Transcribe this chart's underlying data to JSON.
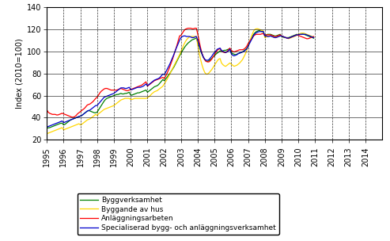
{
  "title": "",
  "ylabel": "Index (2010=100)",
  "xlim": [
    1995,
    2015
  ],
  "ylim": [
    20,
    140
  ],
  "yticks": [
    20,
    40,
    60,
    80,
    100,
    120,
    140
  ],
  "xticks": [
    1995,
    1996,
    1997,
    1998,
    1999,
    2000,
    2001,
    2002,
    2003,
    2004,
    2005,
    2006,
    2007,
    2008,
    2009,
    2010,
    2011,
    2012,
    2013,
    2014
  ],
  "legend_labels": [
    "Byggverksamhet",
    "Byggande av hus",
    "Anläggningsarbeten",
    "Specialiserad bygg- och anläggningsverksamhet"
  ],
  "colors": [
    "#008000",
    "#FFD700",
    "#FF0000",
    "#0000CC"
  ],
  "background_color": "#FFFFFF",
  "series": {
    "Byggverksamhet": [
      30.5,
      30.8,
      31.0,
      31.5,
      32.0,
      32.5,
      33.0,
      33.5,
      34.0,
      34.5,
      35.0,
      35.0,
      33.5,
      34.0,
      35.0,
      36.0,
      37.0,
      38.0,
      38.5,
      39.0,
      39.5,
      40.0,
      40.5,
      41.0,
      41.5,
      42.0,
      43.0,
      44.0,
      45.0,
      46.0,
      46.5,
      46.0,
      45.5,
      45.0,
      44.5,
      44.5,
      45.0,
      47.0,
      49.0,
      51.0,
      53.0,
      55.0,
      56.5,
      57.5,
      58.0,
      58.5,
      59.0,
      59.5,
      60.0,
      60.5,
      61.0,
      61.0,
      61.5,
      62.0,
      61.5,
      61.5,
      62.0,
      62.0,
      62.5,
      63.0,
      60.5,
      60.5,
      61.0,
      61.5,
      62.0,
      62.5,
      62.5,
      63.0,
      63.5,
      64.0,
      64.5,
      65.0,
      63.0,
      64.0,
      65.0,
      66.0,
      67.0,
      68.0,
      68.5,
      69.0,
      70.0,
      71.5,
      73.0,
      74.5,
      73.5,
      75.0,
      76.5,
      78.5,
      80.0,
      82.0,
      84.0,
      86.0,
      88.5,
      91.0,
      93.5,
      96.0,
      98.0,
      100.5,
      102.5,
      104.5,
      106.0,
      107.5,
      108.5,
      109.5,
      110.5,
      111.0,
      111.5,
      112.0,
      108.5,
      105.0,
      101.0,
      97.5,
      94.5,
      92.5,
      91.0,
      91.0,
      91.5,
      92.5,
      93.5,
      95.0,
      96.0,
      97.5,
      98.5,
      99.5,
      100.5,
      100.0,
      100.5,
      101.0,
      101.0,
      101.5,
      102.0,
      102.5,
      99.0,
      98.0,
      97.5,
      97.0,
      97.5,
      98.0,
      98.5,
      99.0,
      99.5,
      100.5,
      101.5,
      102.5,
      105.0,
      108.0,
      110.5,
      113.0,
      115.5,
      117.0,
      118.0,
      118.5,
      119.0,
      118.5,
      118.0,
      117.5,
      114.5,
      115.0,
      115.5,
      115.5,
      115.5,
      115.0,
      114.5,
      114.0,
      114.0,
      114.5,
      115.0,
      115.5,
      113.5,
      113.0,
      112.5,
      112.5,
      112.5,
      112.5,
      113.0,
      113.5,
      114.0,
      114.5,
      115.0,
      115.5,
      115.0,
      115.5,
      115.5,
      116.0,
      115.5,
      115.0,
      114.5,
      114.0,
      113.5,
      113.0,
      112.5,
      112.0
    ],
    "Byggande av hus": [
      25.5,
      26.0,
      26.5,
      27.0,
      27.5,
      28.0,
      28.5,
      29.0,
      29.5,
      30.0,
      30.5,
      31.0,
      29.0,
      29.5,
      30.0,
      30.5,
      31.0,
      31.5,
      32.0,
      32.5,
      33.0,
      33.5,
      34.0,
      34.5,
      33.5,
      34.0,
      35.0,
      36.0,
      37.0,
      38.0,
      38.5,
      39.0,
      40.0,
      41.0,
      42.0,
      43.0,
      42.0,
      43.5,
      44.5,
      45.5,
      46.5,
      47.5,
      48.0,
      48.5,
      49.0,
      49.5,
      50.0,
      50.5,
      51.0,
      52.0,
      53.0,
      54.0,
      55.0,
      56.0,
      56.5,
      57.0,
      57.5,
      57.5,
      57.5,
      57.5,
      56.5,
      56.5,
      57.0,
      57.5,
      57.5,
      57.5,
      57.5,
      57.5,
      57.5,
      57.5,
      57.5,
      57.5,
      58.0,
      59.0,
      60.0,
      61.5,
      62.5,
      63.5,
      64.0,
      64.5,
      65.5,
      66.5,
      67.5,
      68.5,
      70.5,
      72.5,
      74.5,
      77.0,
      79.5,
      82.0,
      84.5,
      87.0,
      89.5,
      92.0,
      94.5,
      97.0,
      100.0,
      103.0,
      106.0,
      108.5,
      110.5,
      112.0,
      113.0,
      113.5,
      113.5,
      113.5,
      113.5,
      113.5,
      106.0,
      99.0,
      93.0,
      88.0,
      84.0,
      81.0,
      79.5,
      79.5,
      80.5,
      82.0,
      83.5,
      85.5,
      87.5,
      89.5,
      91.5,
      93.0,
      93.5,
      89.5,
      88.0,
      87.0,
      86.5,
      87.5,
      88.5,
      89.5,
      88.5,
      87.5,
      86.5,
      87.0,
      87.5,
      88.5,
      89.5,
      91.0,
      92.5,
      95.0,
      97.5,
      100.5,
      104.5,
      108.5,
      112.0,
      115.5,
      118.5,
      120.0,
      120.5,
      120.5,
      120.0,
      119.5,
      119.0,
      118.5,
      112.5,
      113.0,
      113.5,
      114.0,
      114.0,
      113.5,
      113.0,
      112.5,
      112.5,
      113.0,
      113.5,
      114.0,
      114.0,
      113.5,
      113.0,
      112.5,
      112.0,
      111.5,
      112.0,
      112.5,
      113.0,
      113.5,
      114.0,
      114.5,
      115.5,
      116.0,
      116.5,
      116.5,
      116.5,
      116.0,
      115.5,
      115.0,
      114.5,
      114.0,
      113.5,
      113.0
    ],
    "Anlaggningsarbeten": [
      47.0,
      45.0,
      44.0,
      43.5,
      43.0,
      43.0,
      43.0,
      42.5,
      42.5,
      43.0,
      43.5,
      44.0,
      43.5,
      43.0,
      42.5,
      42.0,
      41.5,
      41.0,
      40.5,
      40.5,
      41.0,
      42.0,
      43.5,
      44.5,
      45.5,
      46.5,
      47.5,
      48.5,
      50.0,
      51.5,
      52.0,
      52.5,
      53.5,
      54.5,
      56.0,
      57.5,
      58.5,
      60.5,
      62.5,
      64.0,
      65.0,
      66.0,
      66.5,
      66.5,
      66.0,
      65.5,
      65.0,
      65.0,
      65.0,
      65.0,
      65.0,
      65.5,
      66.0,
      66.5,
      66.0,
      65.5,
      65.0,
      64.5,
      64.5,
      65.0,
      65.5,
      66.0,
      66.5,
      67.0,
      67.5,
      68.0,
      68.5,
      69.0,
      69.5,
      70.5,
      71.5,
      72.5,
      68.5,
      69.5,
      70.5,
      71.5,
      72.5,
      73.5,
      74.0,
      74.5,
      75.0,
      75.5,
      76.0,
      76.5,
      75.5,
      77.5,
      80.0,
      83.0,
      86.0,
      89.5,
      93.0,
      97.0,
      101.0,
      105.0,
      109.5,
      114.0,
      114.5,
      116.5,
      118.5,
      120.0,
      120.5,
      121.0,
      121.0,
      121.0,
      120.5,
      120.5,
      121.0,
      121.0,
      116.0,
      109.5,
      103.5,
      98.5,
      95.0,
      92.5,
      91.0,
      90.5,
      90.5,
      91.5,
      93.0,
      95.0,
      97.0,
      99.0,
      101.0,
      102.0,
      102.5,
      100.5,
      99.5,
      99.0,
      99.0,
      100.0,
      101.5,
      103.0,
      101.0,
      100.0,
      99.5,
      100.0,
      100.5,
      101.0,
      101.5,
      101.5,
      101.5,
      102.0,
      103.0,
      104.5,
      107.0,
      109.0,
      110.5,
      112.0,
      114.0,
      115.0,
      115.5,
      115.5,
      115.5,
      115.5,
      116.0,
      116.0,
      114.5,
      115.0,
      115.0,
      115.0,
      115.0,
      114.5,
      114.0,
      113.5,
      113.5,
      114.0,
      114.5,
      115.0,
      114.0,
      113.5,
      113.0,
      112.5,
      112.0,
      112.0,
      112.5,
      113.0,
      113.5,
      114.0,
      114.5,
      115.0,
      114.5,
      114.0,
      113.5,
      113.0,
      112.5,
      112.0,
      111.5,
      111.5,
      112.0,
      112.5,
      113.0,
      113.5
    ],
    "Specialiserad": [
      31.5,
      32.0,
      32.5,
      33.0,
      33.5,
      34.0,
      34.5,
      35.0,
      35.5,
      36.0,
      36.5,
      37.0,
      35.5,
      36.0,
      36.5,
      37.0,
      37.5,
      38.0,
      38.5,
      39.0,
      39.5,
      40.0,
      40.5,
      41.0,
      41.5,
      42.0,
      43.0,
      44.0,
      45.0,
      46.0,
      46.5,
      47.0,
      48.0,
      49.0,
      50.0,
      51.0,
      51.0,
      52.5,
      54.0,
      55.5,
      57.0,
      58.5,
      59.0,
      59.5,
      60.0,
      60.5,
      61.0,
      61.5,
      62.0,
      63.0,
      64.0,
      65.0,
      66.0,
      67.0,
      67.0,
      67.0,
      66.5,
      66.5,
      67.0,
      67.5,
      65.5,
      65.5,
      66.0,
      66.5,
      67.0,
      67.5,
      67.5,
      67.5,
      68.0,
      68.5,
      69.5,
      70.5,
      69.0,
      70.0,
      71.0,
      72.0,
      73.0,
      74.0,
      74.5,
      75.0,
      75.5,
      76.5,
      78.0,
      79.5,
      79.0,
      81.0,
      83.5,
      86.0,
      88.5,
      91.5,
      94.5,
      97.5,
      101.0,
      104.0,
      107.0,
      110.0,
      112.5,
      113.5,
      114.0,
      114.0,
      113.5,
      113.5,
      113.5,
      113.0,
      112.5,
      112.5,
      113.0,
      113.5,
      110.0,
      106.0,
      101.5,
      98.0,
      95.0,
      93.0,
      92.0,
      92.0,
      92.5,
      94.0,
      95.5,
      97.5,
      99.0,
      100.5,
      102.0,
      102.5,
      103.0,
      101.0,
      100.0,
      99.5,
      99.0,
      99.5,
      100.5,
      102.0,
      98.0,
      96.5,
      96.0,
      96.5,
      97.0,
      98.0,
      98.5,
      99.0,
      99.5,
      100.0,
      101.0,
      102.0,
      104.5,
      107.0,
      109.5,
      112.0,
      114.5,
      116.0,
      117.0,
      117.5,
      118.0,
      118.0,
      118.0,
      118.0,
      114.0,
      114.0,
      113.5,
      113.5,
      114.0,
      113.5,
      113.0,
      112.5,
      112.5,
      113.0,
      113.5,
      114.0,
      114.0,
      113.5,
      113.0,
      112.5,
      112.0,
      112.0,
      112.5,
      113.0,
      113.5,
      114.0,
      114.5,
      115.0,
      115.0,
      115.5,
      115.5,
      115.5,
      115.5,
      115.5,
      115.0,
      114.5,
      114.0,
      113.5,
      113.0,
      112.5
    ]
  }
}
